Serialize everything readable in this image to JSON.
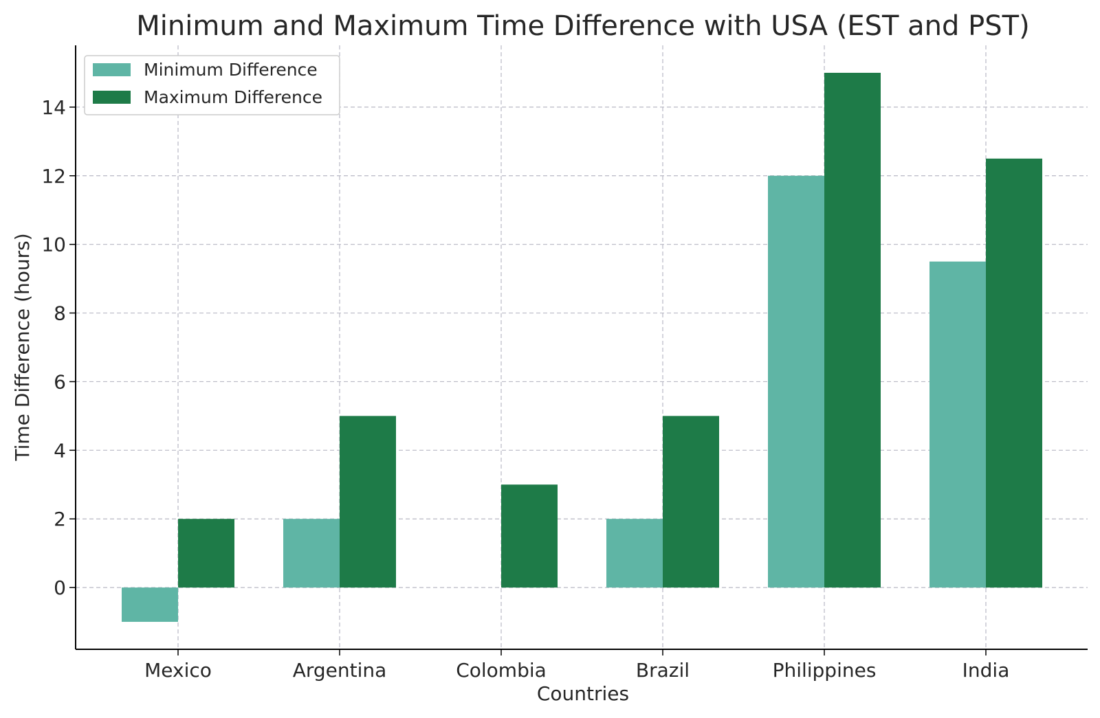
{
  "chart_data": {
    "type": "bar",
    "title": "Minimum and Maximum Time Difference with USA (EST and PST)",
    "xlabel": "Countries",
    "ylabel": "Time Difference (hours)",
    "categories": [
      "Mexico",
      "Argentina",
      "Colombia",
      "Brazil",
      "Philippines",
      "India"
    ],
    "series": [
      {
        "name": "Minimum Difference",
        "color": "#5fb5a5",
        "values": [
          -1,
          2,
          0,
          2,
          12,
          9.5
        ]
      },
      {
        "name": "Maximum Difference",
        "color": "#1e7b48",
        "values": [
          2,
          5,
          3,
          5,
          15,
          12.5
        ]
      }
    ],
    "yticks": [
      0,
      2,
      4,
      6,
      8,
      10,
      12,
      14
    ],
    "ylim": [
      -1.8,
      15.8
    ],
    "grid": true,
    "legend_position": "top-left"
  }
}
